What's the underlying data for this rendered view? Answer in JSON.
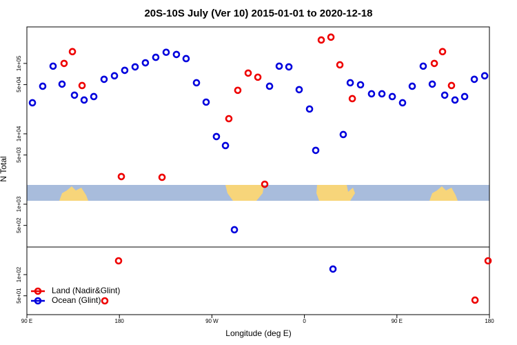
{
  "chart_data": {
    "type": "scatter",
    "title": "20S-10S July (Ver 10)   2015-01-01 to 2020-12-18",
    "x_label": "Longitude (deg E)",
    "y_label": "N Total",
    "log_y": true,
    "legend": "bottomleft",
    "xlim": [
      90,
      540
    ],
    "xticks": [
      {
        "value": 90,
        "label": "90 E"
      },
      {
        "value": 180,
        "label": "180"
      },
      {
        "value": 270,
        "label": "90 W"
      },
      {
        "value": 360,
        "label": "0"
      },
      {
        "value": 450,
        "label": "90 E"
      },
      {
        "value": 540,
        "label": "180"
      }
    ],
    "ylim": [
      27,
      330000
    ],
    "yticks": [
      {
        "value": 100000,
        "label": "1e+05"
      },
      {
        "value": 50000,
        "label": "5e+04"
      },
      {
        "value": 10000,
        "label": "1e+04"
      },
      {
        "value": 5000,
        "label": "5e+03"
      },
      {
        "value": 1000,
        "label": "1e+03"
      },
      {
        "value": 500,
        "label": "5e+02"
      },
      {
        "value": 100,
        "label": "1e+02"
      },
      {
        "value": 50,
        "label": "5e+01"
      }
    ],
    "series": [
      {
        "name": "Land (Nadir&Glint)",
        "color": "#ee0000",
        "x": [
          126.2,
          134.3,
          143.7,
          165.8,
          179.2,
          181.9,
          221.5,
          286.5,
          295.2,
          305.3,
          314.7,
          321.4,
          376.4,
          385.8,
          394.5,
          406.6,
          486.4,
          494.4,
          503.1,
          526.0,
          538.7
        ],
        "values": [
          100000,
          147000,
          48500,
          42.4,
          157,
          2470,
          2410,
          16400,
          41500,
          72900,
          63700,
          1920,
          215000,
          236000,
          95500,
          31600,
          100000,
          147000,
          48500,
          43.4,
          157
        ]
      },
      {
        "name": "Ocean (Glint)",
        "color": "#0000dd",
        "x": [
          95.4,
          105.4,
          115.5,
          124.2,
          136.3,
          145.7,
          155.1,
          165.1,
          175.2,
          185.2,
          195.3,
          205.3,
          215.4,
          225.5,
          235.5,
          244.9,
          255.0,
          264.4,
          274.4,
          283.2,
          291.9,
          326.1,
          335.5,
          344.9,
          354.9,
          365.0,
          371.0,
          387.8,
          397.8,
          404.6,
          414.6,
          425.3,
          435.4,
          445.5,
          455.5,
          464.9,
          475.6,
          484.4,
          496.5,
          506.5,
          515.9,
          525.3,
          535.4
        ],
        "values": [
          27600,
          47400,
          91400,
          50800,
          35400,
          30200,
          33800,
          59500,
          66700,
          79800,
          89300,
          102000,
          122000,
          144000,
          134000,
          117000,
          53100,
          28200,
          9140,
          6810,
          434,
          47400,
          91400,
          89300,
          42400,
          22500,
          5820,
          120,
          9770,
          53100,
          49700,
          37000,
          37000,
          33800,
          27600,
          47400,
          91400,
          50800,
          35400,
          30200,
          33800,
          59500,
          66700
        ]
      }
    ]
  }
}
